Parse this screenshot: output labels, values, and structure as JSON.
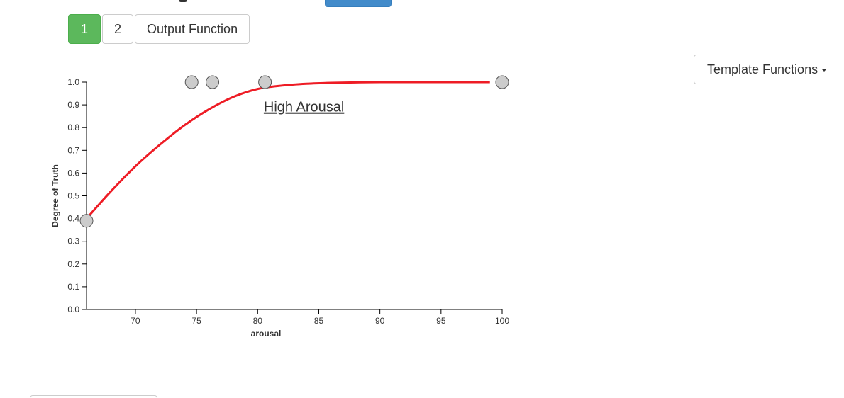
{
  "tabs": [
    {
      "label": "1",
      "active": true
    },
    {
      "label": "2",
      "active": false
    },
    {
      "label": "Output Function",
      "active": false
    }
  ],
  "template_dropdown": {
    "label": "Template Functions"
  },
  "colors": {
    "curve": "#ee1c25",
    "active_tab": "#5cb85c",
    "handle_fill": "#cccccc",
    "handle_stroke": "#555555"
  },
  "chart_data": {
    "type": "line",
    "xlabel": "arousal",
    "ylabel": "Degree of Truth",
    "xlim": [
      66,
      100
    ],
    "ylim": [
      0,
      1
    ],
    "x_ticks": [
      "70",
      "75",
      "80",
      "85",
      "90",
      "95",
      "100"
    ],
    "y_ticks": [
      "0.0",
      "0.1",
      "0.2",
      "0.3",
      "0.4",
      "0.5",
      "0.6",
      "0.7",
      "0.8",
      "0.9",
      "1.0"
    ],
    "series": [
      {
        "name": "High Arousal",
        "x": [
          66,
          68,
          70,
          72,
          74,
          76,
          78,
          80,
          82,
          84,
          86,
          88,
          90,
          95,
          99
        ],
        "y": [
          0.4,
          0.52,
          0.63,
          0.725,
          0.81,
          0.88,
          0.935,
          0.97,
          0.985,
          0.993,
          0.997,
          0.999,
          1.0,
          1.0,
          1.0
        ]
      }
    ],
    "handles": [
      {
        "x": 66,
        "y": 0.39
      },
      {
        "x": 74.6,
        "y": 1.0
      },
      {
        "x": 76.3,
        "y": 1.0
      },
      {
        "x": 80.6,
        "y": 1.0
      },
      {
        "x": 100,
        "y": 1.0
      }
    ],
    "grid": false,
    "legend": "inline-label"
  }
}
